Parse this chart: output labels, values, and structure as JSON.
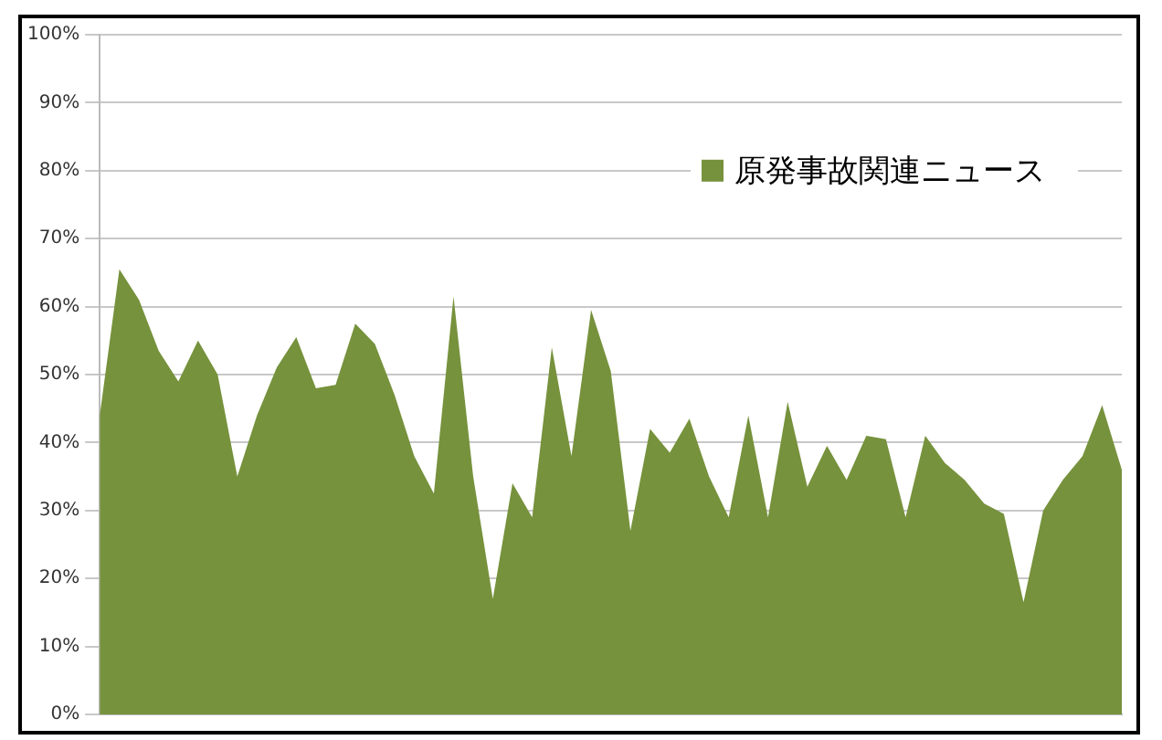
{
  "chart_data": {
    "type": "area",
    "categories": [
      null,
      null,
      null,
      null,
      null,
      null,
      null,
      null,
      null,
      null,
      null,
      null,
      null,
      null,
      null,
      null,
      null,
      null,
      null,
      null,
      null,
      null,
      null,
      null,
      null,
      null,
      null,
      null,
      null,
      null,
      null,
      null,
      null,
      null,
      null,
      null,
      null,
      null,
      null,
      null,
      null,
      null,
      null,
      null,
      null,
      null,
      null,
      null,
      null,
      null,
      null,
      null,
      null
    ],
    "series": [
      {
        "name": "原発事故関連ニュース",
        "color": "#76923c",
        "values": [
          44,
          65.5,
          61,
          53.5,
          49,
          55,
          50,
          35,
          44,
          51,
          55.5,
          48,
          48.5,
          57.5,
          54.5,
          47,
          38,
          32.5,
          61.5,
          35,
          17,
          34,
          29,
          54,
          38,
          59.5,
          50.5,
          27,
          42,
          38.5,
          43.5,
          35,
          29,
          44,
          29,
          46,
          33.5,
          39.5,
          34.5,
          41,
          40.5,
          29,
          41,
          37,
          34.5,
          31,
          29.5,
          16.5,
          30,
          34.5,
          38,
          45.5,
          36
        ]
      }
    ],
    "ylim": [
      0,
      100
    ],
    "yticks": [
      {
        "value": 0,
        "label": "0%"
      },
      {
        "value": 10,
        "label": "10%"
      },
      {
        "value": 20,
        "label": "20%"
      },
      {
        "value": 30,
        "label": "30%"
      },
      {
        "value": 40,
        "label": "40%"
      },
      {
        "value": 50,
        "label": "50%"
      },
      {
        "value": 60,
        "label": "60%"
      },
      {
        "value": 70,
        "label": "70%"
      },
      {
        "value": 80,
        "label": "80%"
      },
      {
        "value": 90,
        "label": "90%"
      },
      {
        "value": 100,
        "label": "100%"
      }
    ],
    "tick_labels": "y",
    "grid": "y",
    "legend": "top right"
  }
}
